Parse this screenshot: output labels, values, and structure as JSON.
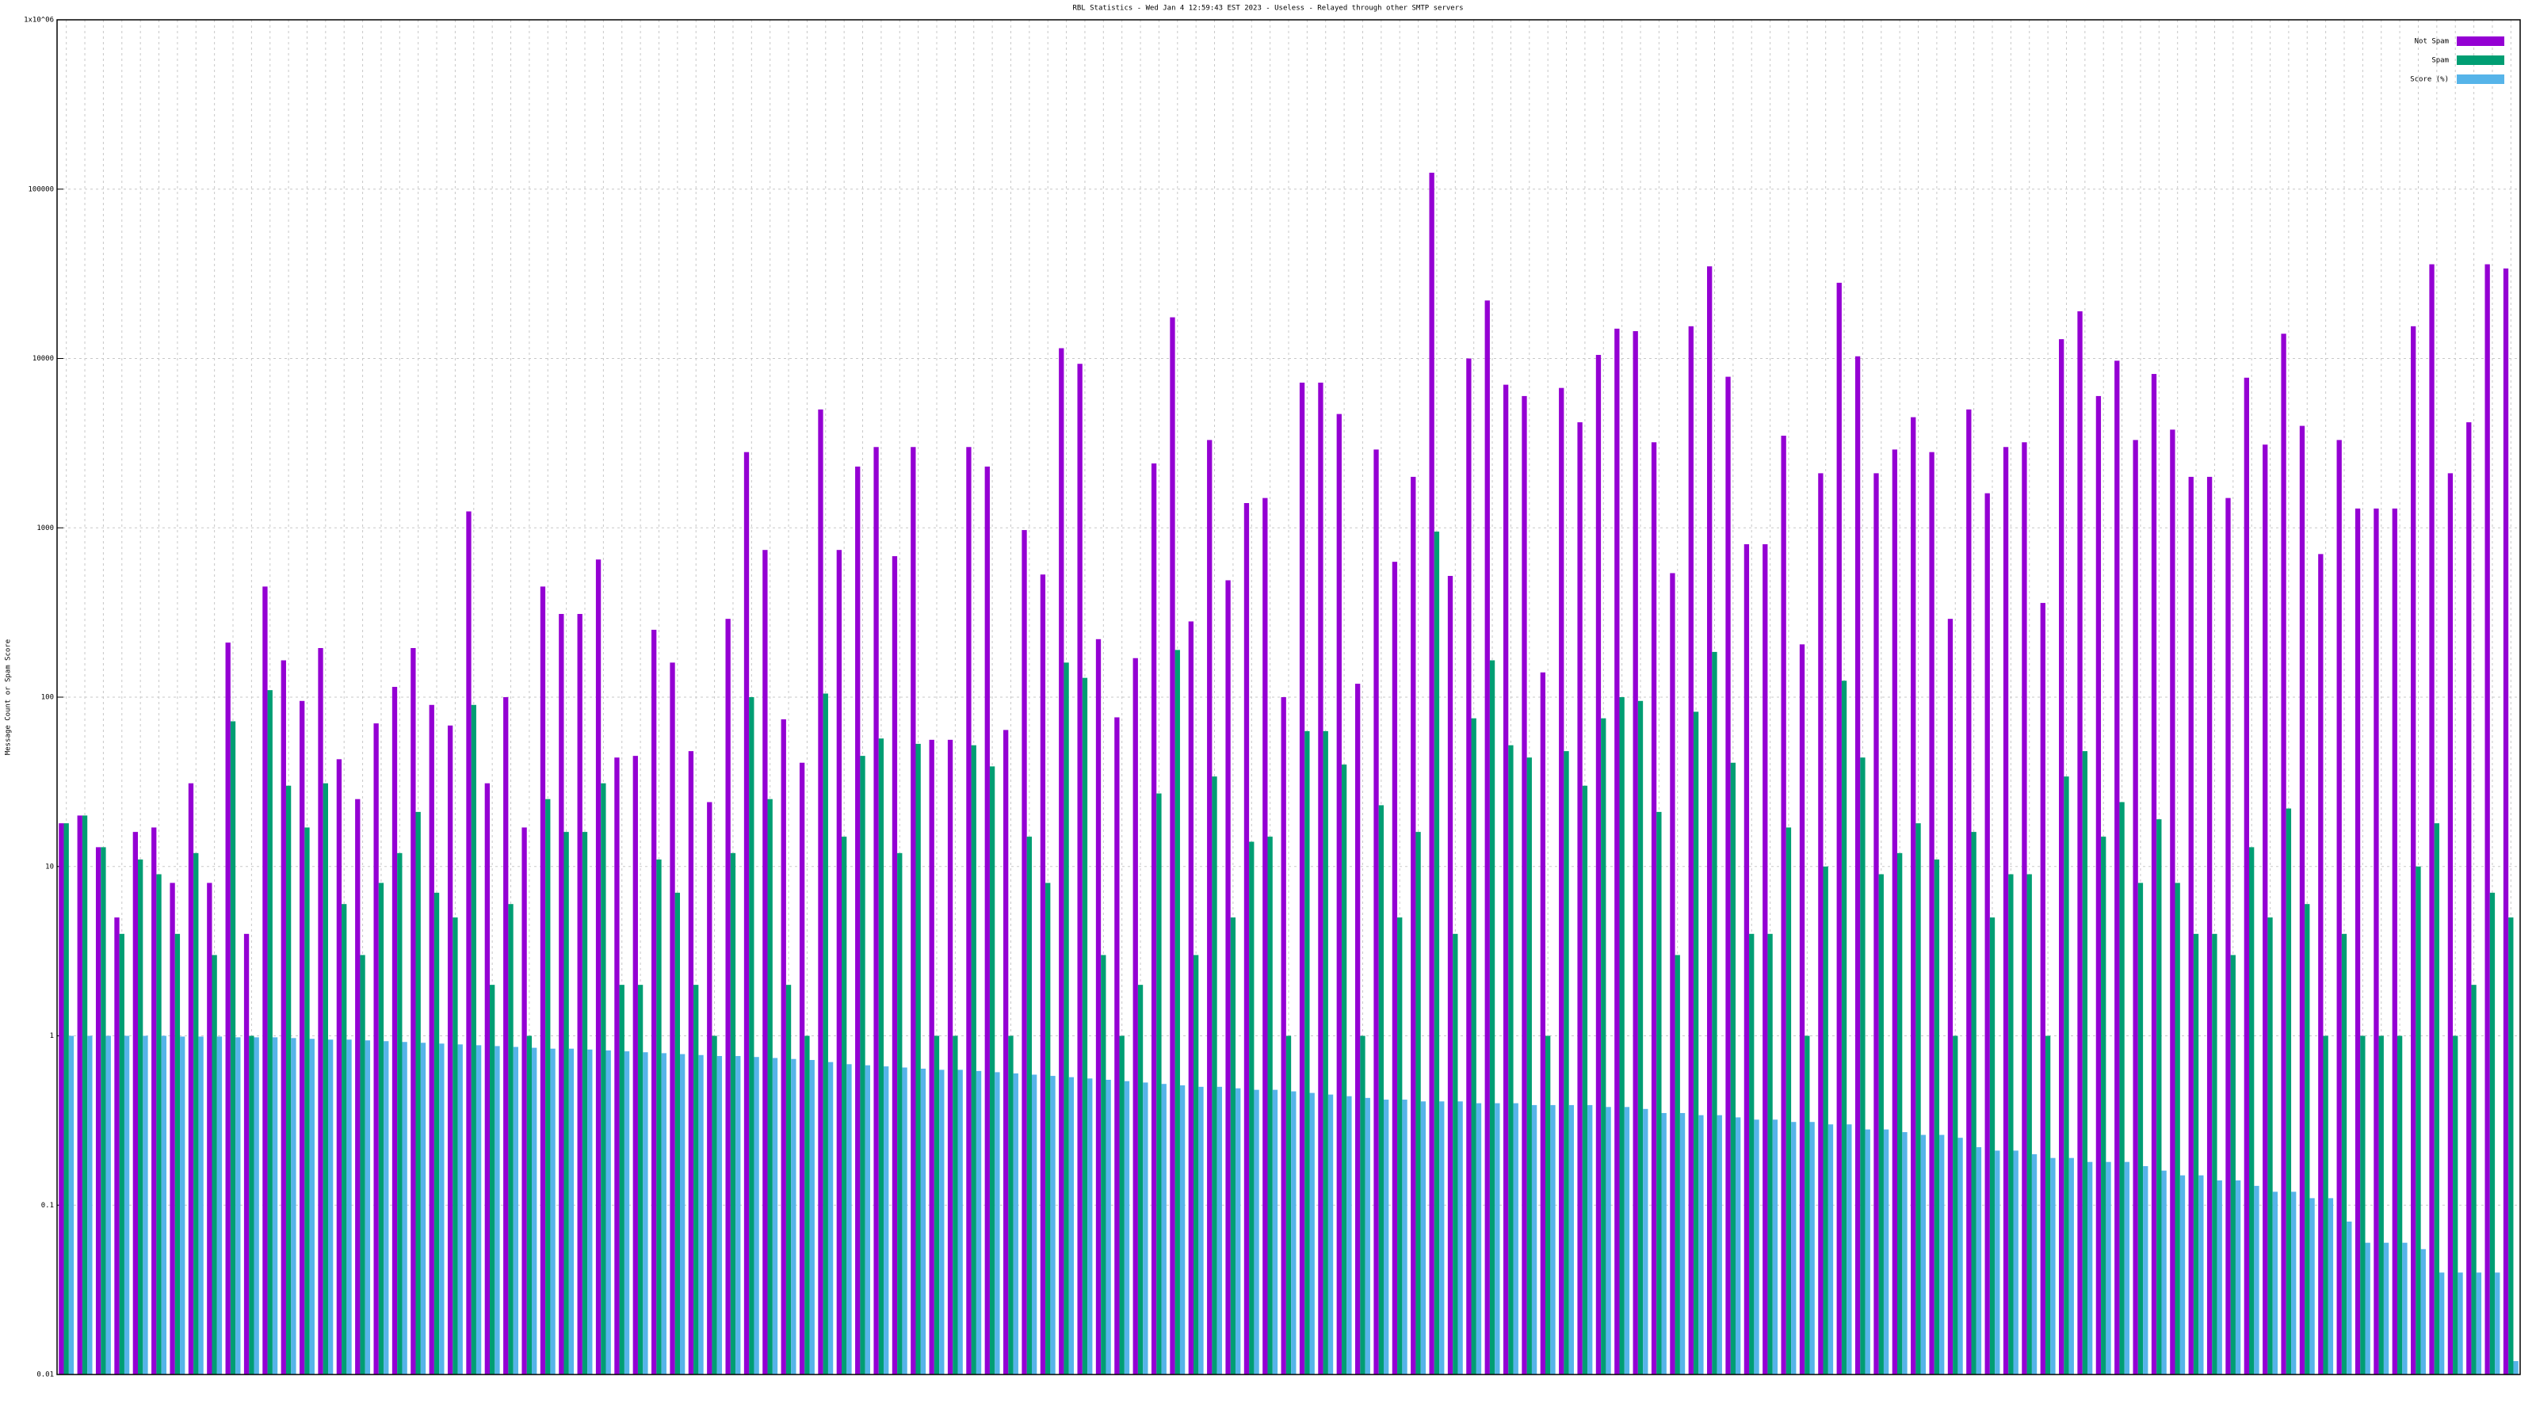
{
  "chart_data": {
    "type": "bar",
    "title": "RBL Statistics - Wed Jan  4 12:59:43 EST 2023 - Useless - Relayed through other SMTP servers",
    "y_label": "Message Count or Spam Score",
    "log_y": true,
    "grid": true,
    "legend": "top-right",
    "categories": [
      null,
      null,
      null,
      null,
      null,
      null,
      null,
      null,
      null,
      null,
      null,
      null,
      null,
      null,
      null,
      null,
      null,
      null,
      null,
      null,
      null,
      null,
      null,
      null,
      null,
      null,
      null,
      null,
      null,
      null,
      null,
      null,
      null,
      null,
      null,
      null,
      null,
      null,
      null,
      null,
      null,
      null,
      null,
      null,
      null,
      null,
      null,
      null,
      null,
      null,
      null,
      null,
      null,
      null,
      null,
      null,
      null,
      null,
      null,
      null,
      null,
      null,
      null,
      null,
      null,
      null,
      null,
      null,
      null,
      null,
      null,
      null,
      null,
      null,
      null,
      null,
      null,
      null,
      null,
      null,
      null,
      null,
      null,
      null,
      null,
      null,
      null,
      null,
      null,
      null,
      null,
      null,
      null,
      null,
      null,
      null,
      null,
      null,
      null,
      null,
      null,
      null,
      null,
      null,
      null,
      null,
      null,
      null,
      null,
      null,
      null,
      null,
      null,
      null,
      null,
      null,
      null,
      null,
      null,
      null,
      null,
      null,
      null,
      null,
      null,
      null,
      null,
      null,
      null,
      null,
      null,
      null,
      null
    ],
    "series": [
      {
        "name": "Not Spam",
        "color": "#9400d3",
        "values": [
          18,
          20,
          13,
          5,
          16,
          17,
          8,
          31,
          8,
          210,
          4,
          450,
          165,
          95,
          195,
          43,
          25,
          70,
          115,
          195,
          90,
          68,
          1250,
          31,
          100,
          17,
          450,
          310,
          310,
          650,
          44,
          45,
          250,
          160,
          48,
          24,
          290,
          2800,
          740,
          74,
          41,
          5000,
          740,
          2300,
          3000,
          680,
          3000,
          56,
          56,
          3000,
          2300,
          64,
          970,
          530,
          11500,
          9300,
          220,
          76,
          170,
          2400,
          17500,
          280,
          3300,
          490,
          1400,
          1500,
          100,
          7200,
          7200,
          4700,
          120,
          2900,
          630,
          2000,
          125000,
          520,
          10000,
          22000,
          7000,
          6000,
          140,
          6700,
          4200,
          10500,
          15000,
          14500,
          3200,
          540,
          15500,
          35000,
          7800,
          800,
          800,
          3500,
          205,
          2100,
          28000,
          10300,
          2100,
          2900,
          4500,
          2800,
          290,
          5000,
          1600,
          3000,
          3200,
          360,
          13000,
          19000,
          6000,
          9700,
          3300,
          8100,
          3800,
          2000,
          2000,
          1500,
          7700,
          3100,
          14000,
          4000,
          700,
          3300,
          1300,
          1300,
          1300,
          15500,
          36000,
          2100,
          4200,
          36000,
          34000
        ]
      },
      {
        "name": "Spam",
        "color": "#009e73",
        "values": [
          18,
          20,
          13,
          4,
          11,
          9,
          4,
          12,
          3,
          72,
          1,
          110,
          30,
          17,
          31,
          6,
          3,
          8,
          12,
          21,
          7,
          5,
          90,
          2,
          6,
          1,
          25,
          16,
          16,
          31,
          2,
          2,
          11,
          7,
          2,
          1,
          12,
          100,
          25,
          2,
          1,
          105,
          15,
          45,
          57,
          12,
          53,
          1,
          1,
          52,
          39,
          1,
          15,
          8,
          160,
          130,
          3,
          1,
          2,
          27,
          190,
          3,
          34,
          5,
          14,
          15,
          1,
          63,
          63,
          40,
          1,
          23,
          5,
          16,
          950,
          4,
          75,
          165,
          52,
          44,
          1,
          48,
          30,
          75,
          100,
          95,
          21,
          3,
          82,
          185,
          41,
          4,
          4,
          17,
          1,
          10,
          125,
          44,
          9,
          12,
          18,
          11,
          1,
          16,
          5,
          9,
          9,
          1,
          34,
          48,
          15,
          24,
          8,
          19,
          8,
          4,
          4,
          3,
          13,
          5,
          22,
          6,
          1,
          4,
          1,
          1,
          1,
          10,
          18,
          1,
          2,
          7,
          5
        ]
      },
      {
        "name": "Score (%)",
        "color": "#56b4e9",
        "values": [
          1,
          1,
          1,
          1,
          1,
          1,
          0.99,
          0.99,
          0.99,
          0.98,
          0.98,
          0.98,
          0.97,
          0.96,
          0.95,
          0.95,
          0.94,
          0.93,
          0.92,
          0.91,
          0.9,
          0.89,
          0.88,
          0.87,
          0.86,
          0.85,
          0.84,
          0.84,
          0.83,
          0.82,
          0.81,
          0.8,
          0.79,
          0.78,
          0.77,
          0.76,
          0.76,
          0.75,
          0.74,
          0.73,
          0.72,
          0.7,
          0.68,
          0.67,
          0.66,
          0.65,
          0.64,
          0.63,
          0.63,
          0.62,
          0.61,
          0.6,
          0.59,
          0.58,
          0.57,
          0.56,
          0.55,
          0.54,
          0.53,
          0.52,
          0.51,
          0.5,
          0.5,
          0.49,
          0.48,
          0.48,
          0.47,
          0.46,
          0.45,
          0.44,
          0.43,
          0.42,
          0.42,
          0.41,
          0.41,
          0.41,
          0.4,
          0.4,
          0.4,
          0.39,
          0.39,
          0.39,
          0.39,
          0.38,
          0.38,
          0.37,
          0.35,
          0.35,
          0.34,
          0.34,
          0.33,
          0.32,
          0.32,
          0.31,
          0.31,
          0.3,
          0.3,
          0.28,
          0.28,
          0.27,
          0.26,
          0.26,
          0.25,
          0.22,
          0.21,
          0.21,
          0.2,
          0.19,
          0.19,
          0.18,
          0.18,
          0.18,
          0.17,
          0.16,
          0.15,
          0.15,
          0.14,
          0.14,
          0.13,
          0.12,
          0.12,
          0.11,
          0.11,
          0.08,
          0.06,
          0.06,
          0.06,
          0.055,
          0.04,
          0.04,
          0.04,
          0.04,
          0.012
        ]
      }
    ],
    "ylim": [
      0.01,
      1000000
    ],
    "yticks": [
      0.01,
      0.1,
      1,
      10,
      100,
      1000,
      10000,
      100000,
      {
        "value": 1000000,
        "label": "1x10^06"
      }
    ]
  }
}
